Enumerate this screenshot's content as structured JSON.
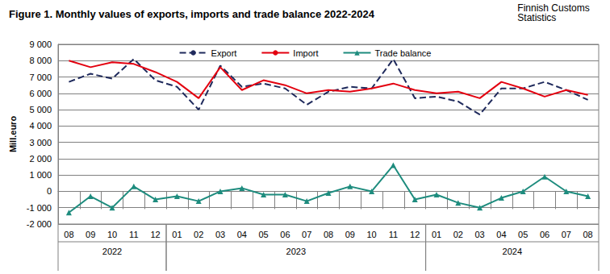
{
  "chart_data": {
    "type": "line",
    "title": "Figure 1. Monthly values of exports, imports and trade balance 2022-2024",
    "source": "Finnish Customs Statistics",
    "y_label": "Mill.euro",
    "categories": [
      "08",
      "09",
      "10",
      "11",
      "12",
      "01",
      "02",
      "03",
      "04",
      "05",
      "06",
      "07",
      "08",
      "09",
      "10",
      "11",
      "12",
      "01",
      "02",
      "03",
      "04",
      "05",
      "06",
      "07",
      "08"
    ],
    "category_groups": [
      {
        "label": "2022",
        "size": 5
      },
      {
        "label": "2023",
        "size": 12
      },
      {
        "label": "2024",
        "size": 8
      }
    ],
    "series": [
      {
        "name": "Export",
        "color": "#1f2a5c",
        "line_style": "dashed",
        "marker": "none",
        "values": [
          6700,
          7200,
          6900,
          8100,
          6800,
          6400,
          5000,
          7700,
          6400,
          6600,
          6300,
          5300,
          6100,
          6400,
          6300,
          8100,
          5700,
          5800,
          5500,
          4700,
          6300,
          6300,
          6700,
          6200,
          5600
        ]
      },
      {
        "name": "Import",
        "color": "#e3000f",
        "line_style": "solid",
        "marker": "none",
        "values": [
          8000,
          7600,
          7900,
          7800,
          7300,
          6700,
          5700,
          7600,
          6200,
          6800,
          6500,
          6000,
          6200,
          6100,
          6300,
          6600,
          6200,
          6000,
          6100,
          5700,
          6700,
          6300,
          5800,
          6200,
          5900
        ]
      },
      {
        "name": "Trade balance",
        "color": "#1e8c7e",
        "line_style": "solid",
        "marker": "triangle",
        "values": [
          -1300,
          -300,
          -1000,
          300,
          -500,
          -300,
          -600,
          0,
          200,
          -200,
          -200,
          -600,
          -100,
          300,
          0,
          1600,
          -500,
          -200,
          -700,
          -1000,
          -400,
          0,
          900,
          0,
          -300
        ]
      }
    ],
    "ylim": [
      -2000,
      9000
    ],
    "yticks": [
      {
        "value": -2000,
        "label": "-2 000"
      },
      {
        "value": -1000,
        "label": "-1 000"
      },
      0,
      {
        "value": 1000,
        "label": "1 000"
      },
      {
        "value": 2000,
        "label": "2 000"
      },
      {
        "value": 3000,
        "label": "3 000"
      },
      {
        "value": 4000,
        "label": "4 000"
      },
      {
        "value": 5000,
        "label": "5 000"
      },
      {
        "value": 6000,
        "label": "6 000"
      },
      {
        "value": 7000,
        "label": "7 000"
      },
      {
        "value": 8000,
        "label": "8 000"
      },
      {
        "value": 9000,
        "label": "9 000"
      }
    ],
    "grid": true,
    "legend": "top"
  }
}
